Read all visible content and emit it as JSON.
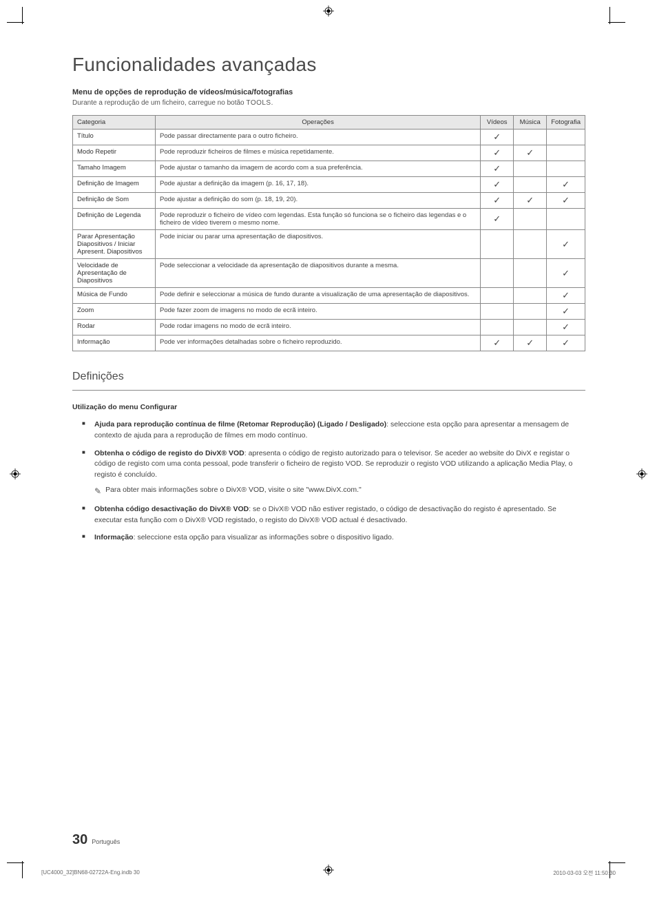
{
  "mainTitle": "Funcionalidades avançadas",
  "menuSection": {
    "title": "Menu de opções de reprodução de vídeos/música/fotografias",
    "subtitle_prefix": "Durante a reprodução de um ficheiro, carregue no botão ",
    "subtitle_tools": "TOOLS",
    "subtitle_suffix": "."
  },
  "table": {
    "headers": {
      "category": "Categoria",
      "operations": "Operações",
      "videos": "Vídeos",
      "music": "Música",
      "photo": "Fotografia"
    },
    "checkmark": "✓",
    "rows": [
      {
        "cat": "Título",
        "op": "Pode passar directamente para o outro ficheiro.",
        "v": true,
        "m": false,
        "p": false
      },
      {
        "cat": "Modo Repetir",
        "op": "Pode reproduzir ficheiros de filmes e música repetidamente.",
        "v": true,
        "m": true,
        "p": false
      },
      {
        "cat": "Tamaho Imagem",
        "op": "Pode ajustar o tamanho da imagem de acordo com a sua preferência.",
        "v": true,
        "m": false,
        "p": false
      },
      {
        "cat": "Definição de Imagem",
        "op": "Pode ajustar a definição da imagem (p. 16, 17, 18).",
        "v": true,
        "m": false,
        "p": true
      },
      {
        "cat": "Definição de Som",
        "op": "Pode ajustar a definição do som (p. 18, 19, 20).",
        "v": true,
        "m": true,
        "p": true
      },
      {
        "cat": "Definição de Legenda",
        "op": "Pode reproduzir o ficheiro de vídeo com legendas. Esta função só funciona se o ficheiro das legendas e o ficheiro de vídeo tiverem o mesmo nome.",
        "v": true,
        "m": false,
        "p": false
      },
      {
        "cat": "Parar Apresentação Diapositivos / Iniciar Apresent. Diapositivos",
        "op": "Pode iniciar ou parar uma apresentação de diapositivos.",
        "v": false,
        "m": false,
        "p": true
      },
      {
        "cat": "Velocidade de Apresentação de Diapositivos",
        "op": "Pode seleccionar a velocidade da apresentação de diapositivos durante a mesma.",
        "v": false,
        "m": false,
        "p": true
      },
      {
        "cat": "Música de Fundo",
        "op": "Pode definir e seleccionar a música de fundo durante a visualização de uma apresentação de diapositivos.",
        "v": false,
        "m": false,
        "p": true
      },
      {
        "cat": "Zoom",
        "op": "Pode fazer zoom de imagens no modo de ecrã inteiro.",
        "v": false,
        "m": false,
        "p": true
      },
      {
        "cat": "Rodar",
        "op": "Pode rodar imagens no modo de ecrã inteiro.",
        "v": false,
        "m": false,
        "p": true
      },
      {
        "cat": "Informação",
        "op": "Pode ver informações detalhadas sobre o ficheiro reproduzido.",
        "v": true,
        "m": true,
        "p": true
      }
    ]
  },
  "definitions": {
    "title": "Definições",
    "subTitle": "Utilização do menu Configurar",
    "bullets": [
      {
        "bold": "Ajuda para reprodução contínua de filme (Retomar Reprodução) (Ligado / Desligado)",
        "text": ": seleccione esta opção para apresentar a mensagem de contexto de ajuda para a reprodução de filmes em modo contínuo."
      },
      {
        "bold": "Obtenha o código de registo do DivX® VOD",
        "text": ": apresenta o código de registo autorizado para o televisor. Se aceder ao website do DivX e registar o código de registo com uma conta pessoal, pode transferir o ficheiro de registo VOD. Se reproduzir o registo VOD utilizando a aplicação Media Play, o registo é concluído.",
        "note": "Para obter mais informações sobre o DivX® VOD, visite o site \"www.DivX.com.\""
      },
      {
        "bold": "Obtenha código desactivação do DivX® VOD",
        "text": ": se o DivX® VOD não estiver registado, o código de desactivação do registo é apresentado. Se executar esta função com o DivX® VOD registado, o registo do DivX® VOD actual é desactivado."
      },
      {
        "bold": "Informação",
        "text": ": seleccione esta opção para visualizar as informações sobre o dispositivo ligado."
      }
    ]
  },
  "footer": {
    "pageNum": "30",
    "lang": "Português",
    "docRef": "[UC4000_32]BN68-02722A-Eng.indb   30",
    "timestamp": "2010-03-03   오전 11:50:30"
  },
  "noteIcon": "✎"
}
